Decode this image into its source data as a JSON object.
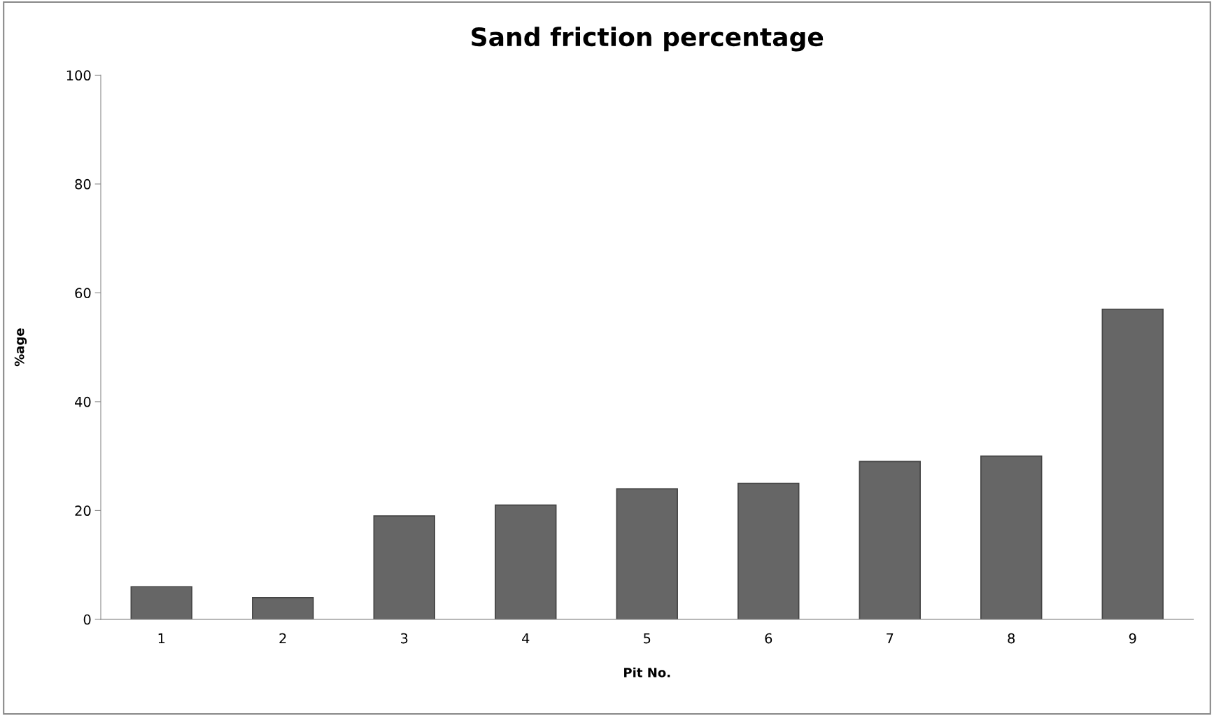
{
  "chart_data": {
    "type": "bar",
    "title": "Sand friction percentage",
    "xlabel": "Pit No.",
    "ylabel": "%age",
    "categories": [
      "1",
      "2",
      "3",
      "4",
      "5",
      "6",
      "7",
      "8",
      "9"
    ],
    "values": [
      6,
      4,
      19,
      21,
      24,
      25,
      29,
      30,
      57
    ],
    "color": "#666666",
    "ylim": [
      0,
      100
    ],
    "yticks": [
      0,
      20,
      40,
      60,
      80,
      100
    ],
    "grid": false,
    "legend": false
  }
}
